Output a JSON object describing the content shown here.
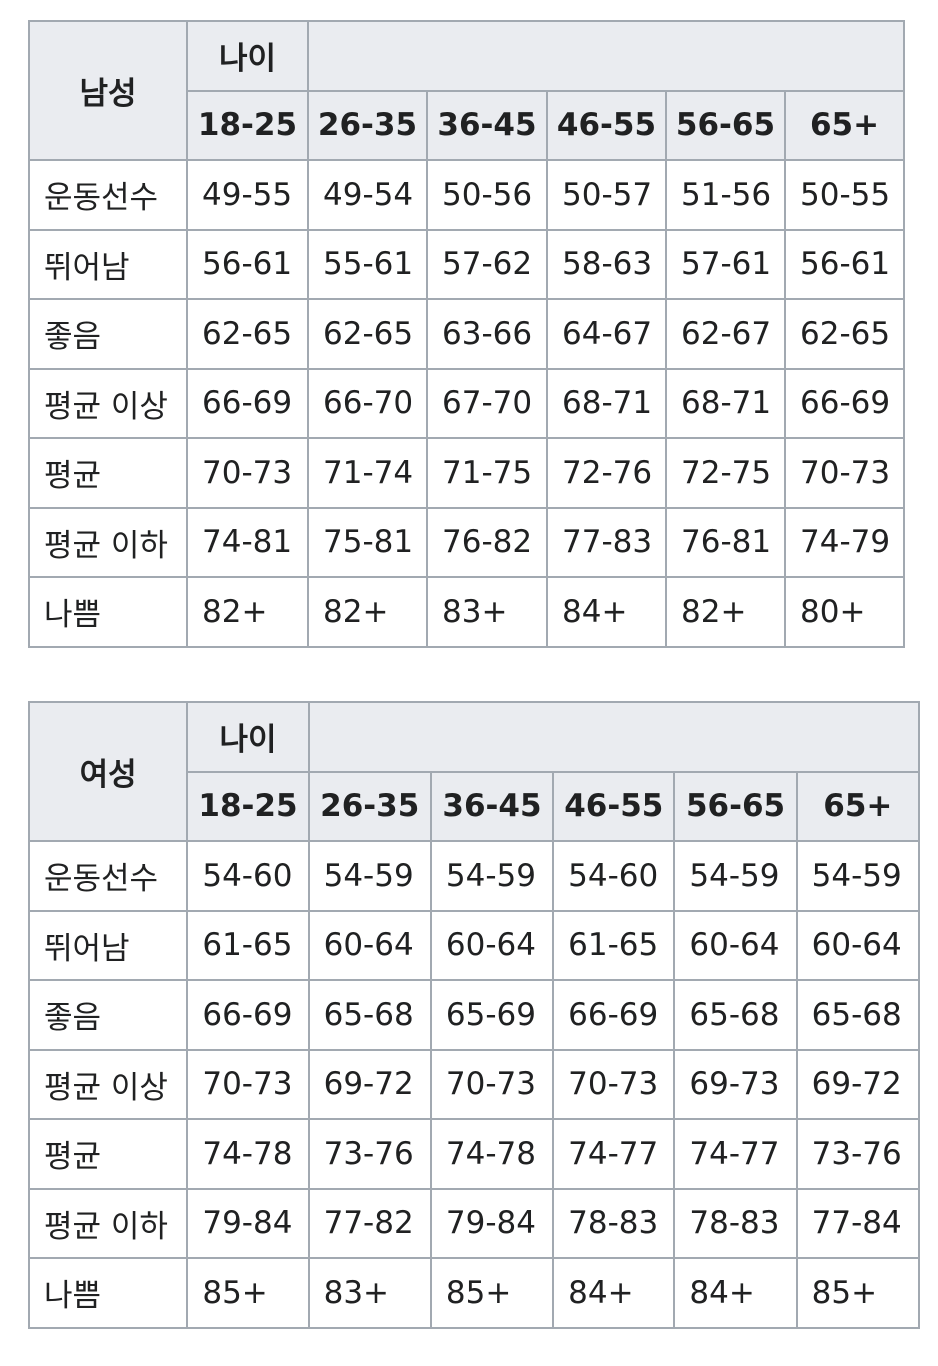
{
  "tables": [
    {
      "gender": "남성",
      "age_header": "나이",
      "age_ranges": [
        "18-25",
        "26-35",
        "36-45",
        "46-55",
        "56-65",
        "65+"
      ],
      "rows": [
        {
          "category": "운동선수",
          "values": [
            "49-55",
            "49-54",
            "50-56",
            "50-57",
            "51-56",
            "50-55"
          ]
        },
        {
          "category": "뛰어남",
          "values": [
            "56-61",
            "55-61",
            "57-62",
            "58-63",
            "57-61",
            "56-61"
          ]
        },
        {
          "category": "좋음",
          "values": [
            "62-65",
            "62-65",
            "63-66",
            "64-67",
            "62-67",
            "62-65"
          ]
        },
        {
          "category": "평균 이상",
          "values": [
            "66-69",
            "66-70",
            "67-70",
            "68-71",
            "68-71",
            "66-69"
          ]
        },
        {
          "category": "평균",
          "values": [
            "70-73",
            "71-74",
            "71-75",
            "72-76",
            "72-75",
            "70-73"
          ]
        },
        {
          "category": "평균 이하",
          "values": [
            "74-81",
            "75-81",
            "76-82",
            "77-83",
            "76-81",
            "74-79"
          ]
        },
        {
          "category": "나쁨",
          "values": [
            "82+",
            "82+",
            "83+",
            "84+",
            "82+",
            "80+"
          ]
        }
      ]
    },
    {
      "gender": "여성",
      "age_header": "나이",
      "age_ranges": [
        "18-25",
        "26-35",
        "36-45",
        "46-55",
        "56-65",
        "65+"
      ],
      "rows": [
        {
          "category": "운동선수",
          "values": [
            "54-60",
            "54-59",
            "54-59",
            "54-60",
            "54-59",
            "54-59"
          ]
        },
        {
          "category": "뛰어남",
          "values": [
            "61-65",
            "60-64",
            "60-64",
            "61-65",
            "60-64",
            "60-64"
          ]
        },
        {
          "category": "좋음",
          "values": [
            "66-69",
            "65-68",
            "65-69",
            "66-69",
            "65-68",
            "65-68"
          ]
        },
        {
          "category": "평균 이상",
          "values": [
            "70-73",
            "69-72",
            "70-73",
            "70-73",
            "69-73",
            "69-72"
          ]
        },
        {
          "category": "평균",
          "values": [
            "74-78",
            "73-76",
            "74-78",
            "74-77",
            "74-77",
            "73-76"
          ]
        },
        {
          "category": "평균 이하",
          "values": [
            "79-84",
            "77-82",
            "79-84",
            "78-83",
            "78-83",
            "77-84"
          ]
        },
        {
          "category": "나쁨",
          "values": [
            "85+",
            "83+",
            "85+",
            "84+",
            "84+",
            "85+"
          ]
        }
      ]
    }
  ]
}
